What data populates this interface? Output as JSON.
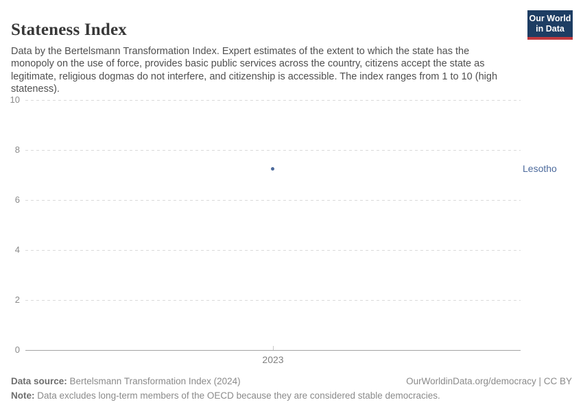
{
  "header": {
    "title": "Stateness Index",
    "subtitle": "Data by the Bertelsmann Transformation Index. Expert estimates of the extent to which the state has the monopoly on the use of force, provides basic public services across the country, citizens accept the state as legitimate, religious dogmas do not interfere, and citizenship is accessible. The index ranges from 1 to 10 (high stateness).",
    "logo": {
      "line1": "Our World",
      "line2": "in Data",
      "bg_color": "#1d3d63",
      "bar_color": "#c0393e"
    }
  },
  "chart_data": {
    "type": "scatter",
    "title": "Stateness Index",
    "x": [
      2023
    ],
    "series": [
      {
        "name": "Lesotho",
        "color": "#4C6A9C",
        "values": [
          {
            "x": 2023,
            "y": 7.25
          }
        ]
      }
    ],
    "xlabel": "",
    "ylabel": "",
    "ylim": [
      0,
      10
    ],
    "yticks": [
      0,
      2,
      4,
      6,
      8,
      10
    ],
    "xticks": [
      "2023"
    ],
    "grid": "horizontal dashed",
    "legend_position": "right-of-point",
    "gridline_color": "#d9d9d9",
    "axis_color": "#a3a3a3",
    "tick_label_color": "#8a8a8a"
  },
  "footer": {
    "datasource_label": "Data source:",
    "datasource_value": " Bertelsmann Transformation Index (2024)",
    "rights": "OurWorldinData.org/democracy | CC BY",
    "note_label": "Note:",
    "note_value": " Data excludes long-term members of the OECD because they are considered stable democracies."
  }
}
